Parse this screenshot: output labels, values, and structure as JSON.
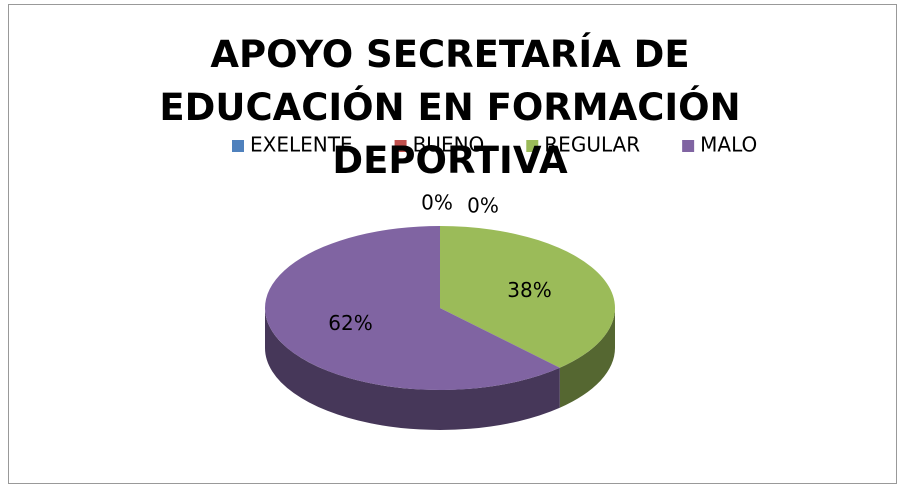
{
  "chart_data": {
    "type": "pie",
    "title": "APOYO SECRETARÍA DE EDUCACIÓN EN FORMACIÓN DEPORTIVA",
    "categories": [
      "EXELENTE",
      "BUENO",
      "REGULAR",
      "MALO"
    ],
    "values": [
      0,
      0,
      38,
      62
    ],
    "value_labels": [
      "0%",
      "0%",
      "38%",
      "62%"
    ],
    "colors": [
      "#4f81bd",
      "#c0504d",
      "#9bbb59",
      "#8064a2"
    ],
    "legend": "top"
  }
}
